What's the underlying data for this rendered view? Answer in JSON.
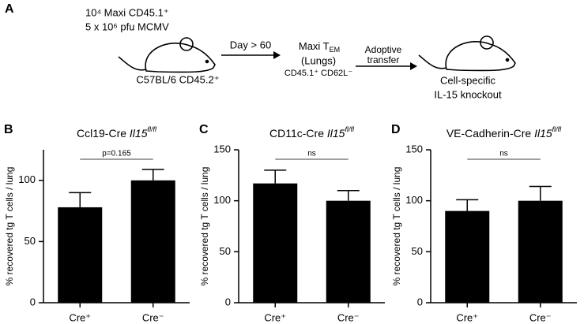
{
  "schematic": {
    "panel_label": "A",
    "inoculum_line1": "10⁴ Maxi CD45.1⁺",
    "inoculum_line2": "5 x 10⁶ pfu MCMV",
    "host": "C57BL/6 CD45.2⁺",
    "arrow1": "Day > 60",
    "cells_main": "Maxi T",
    "cells_sub": "EM",
    "cells_site": "(Lungs)",
    "cells_phenotype": "CD45.1⁺ CD62L⁻",
    "arrow2_line1": "Adoptive",
    "arrow2_line2": "transfer",
    "recipient_line1": "Cell-specific",
    "recipient_line2": "IL-15 knockout"
  },
  "chart_data": [
    {
      "type": "bar",
      "panel_label": "B",
      "title": "Ccl19-Cre ",
      "title_gene": "Il15",
      "title_sup": "fl/fl",
      "y_label": "% recovered tg T cells / lung",
      "categories": [
        "Cre⁺",
        "Cre⁻"
      ],
      "values": [
        78,
        100
      ],
      "errors": [
        12,
        9
      ],
      "color": "#000000",
      "ylim": [
        0,
        125
      ],
      "yticks": [
        0,
        50,
        100
      ],
      "annotation": "p=0.165"
    },
    {
      "type": "bar",
      "panel_label": "C",
      "title": "CD11c-Cre ",
      "title_gene": "Il15",
      "title_sup": "fl/fl",
      "y_label": "% recovered tg T cells / lung",
      "categories": [
        "Cre⁺",
        "Cre⁻"
      ],
      "values": [
        117,
        100
      ],
      "errors": [
        13,
        10
      ],
      "color": "#000000",
      "ylim": [
        0,
        150
      ],
      "yticks": [
        0,
        50,
        100,
        150
      ],
      "annotation": "ns"
    },
    {
      "type": "bar",
      "panel_label": "D",
      "title": "VE-Cadherin-Cre ",
      "title_gene": "Il15",
      "title_sup": "fl/fl",
      "y_label": "% recovered tg T cells / lung",
      "categories": [
        "Cre⁺",
        "Cre⁻"
      ],
      "values": [
        90,
        100
      ],
      "errors": [
        11,
        14
      ],
      "color": "#000000",
      "ylim": [
        0,
        150
      ],
      "yticks": [
        0,
        50,
        100,
        150
      ],
      "annotation": "ns"
    }
  ]
}
